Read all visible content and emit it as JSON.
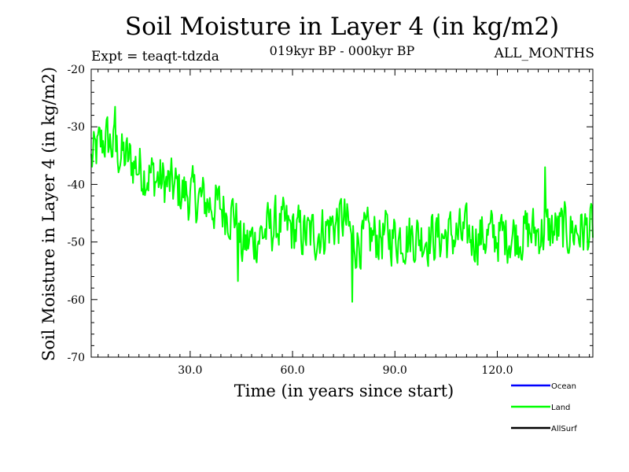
{
  "chart_data": {
    "type": "line",
    "title": "Soil Moisture in Layer 4 (in kg/m2)",
    "experiment": "Expt = teaqt-tdzda",
    "period": "019kyr BP - 000kyr BP",
    "months": "ALL_MONTHS",
    "xlabel": "Time (in years since start)",
    "ylabel": "Soil Moisture in Layer 4 (in kg/m2)",
    "xlim": [
      1,
      148
    ],
    "ylim": [
      -70,
      -20
    ],
    "x_ticks": [
      30,
      60,
      90,
      120
    ],
    "x_tick_labels": [
      "30.0",
      "60.0",
      "90.0",
      "120.0"
    ],
    "y_ticks": [
      -20,
      -30,
      -40,
      -50,
      -60,
      -70
    ],
    "y_tick_labels": [
      "-20",
      "-30",
      "-40",
      "-50",
      "-60",
      "-70"
    ],
    "legend": [
      {
        "name": "Ocean",
        "color": "#0000ff"
      },
      {
        "name": "Land",
        "color": "#00ff00"
      },
      {
        "name": "AllSurf",
        "color": "#000000"
      }
    ],
    "series": [
      {
        "name": "Land",
        "color": "#00ff00",
        "x_start": 1,
        "x_step": 0.25,
        "trend_years": [
          1,
          5,
          10,
          20,
          30,
          43,
          45,
          55,
          65,
          75,
          78,
          85,
          100,
          120,
          135,
          148
        ],
        "trend_values": [
          -36,
          -32,
          -35,
          -39,
          -42,
          -45,
          -51,
          -47,
          -49,
          -46,
          -50,
          -49,
          -49,
          -49,
          -48,
          -48
        ],
        "noise_amplitude": 4.2,
        "notable_points": [
          {
            "x": 8,
            "y": -26.5
          },
          {
            "x": 44,
            "y": -56.8
          },
          {
            "x": 77.5,
            "y": -60.4
          },
          {
            "x": 134,
            "y": -37
          }
        ]
      }
    ]
  }
}
